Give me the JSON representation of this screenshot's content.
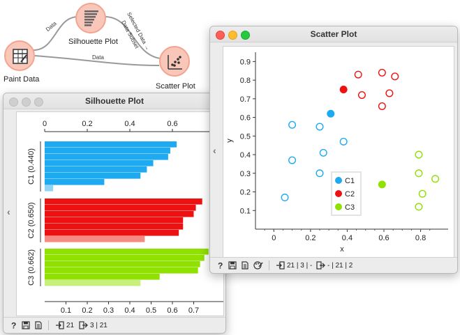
{
  "workflow": {
    "nodes": {
      "paint_data": "Paint Data",
      "silhouette_plot": "Silhouette Plot",
      "scatter_plot": "Scatter Plot"
    },
    "links": {
      "paint_to_silhouette": "Data",
      "paint_to_scatter": "Data",
      "silhouette_to_scatter_1": "Selected Data →",
      "silhouette_to_scatter_2": "Data Subset"
    },
    "colors": {
      "node_bg": "#f9c7b9",
      "node_ring": "#f2a48f",
      "link": "#999999"
    }
  },
  "silhouette_window": {
    "title": "Silhouette Plot",
    "status": {
      "input_count": "21",
      "output_count": "3 | 21"
    },
    "chart_data": {
      "type": "bar",
      "orientation": "horizontal",
      "x_ticks_top": [
        "0",
        "0.2",
        "0.4",
        "0.6"
      ],
      "x_ticks_bottom": [
        "0.1",
        "0.2",
        "0.3",
        "0.4",
        "0.5",
        "0.6",
        "0.7"
      ],
      "xlim": [
        0,
        0.77
      ],
      "groups": [
        {
          "label": "C1 (0.440)",
          "color": "#1eaaf0",
          "selected_color": "#8fd4f7",
          "values": [
            0.62,
            0.59,
            0.58,
            0.51,
            0.48,
            0.45,
            0.28,
            0.04
          ]
        },
        {
          "label": "C2 (0.650)",
          "color": "#ee1111",
          "selected_color": "#f58a80",
          "values": [
            0.74,
            0.71,
            0.7,
            0.65,
            0.65,
            0.63,
            0.47
          ]
        },
        {
          "label": "C3 (0.662)",
          "color": "#90e000",
          "selected_color": "#c7f07a",
          "values": [
            0.77,
            0.75,
            0.73,
            0.72,
            0.54,
            0.45
          ]
        }
      ]
    }
  },
  "scatter_window": {
    "title": "Scatter Plot",
    "status": {
      "input": "21 | 3 | -",
      "output": "- | 21 | 2"
    },
    "chart_data": {
      "type": "scatter",
      "xlabel": "x",
      "ylabel": "y",
      "xlim": [
        -0.1,
        0.95
      ],
      "ylim": [
        0,
        0.95
      ],
      "x_ticks": [
        "0",
        "0.2",
        "0.4",
        "0.6",
        "0.8"
      ],
      "y_ticks": [
        "0.1",
        "0.2",
        "0.3",
        "0.4",
        "0.5",
        "0.6",
        "0.7",
        "0.8",
        "0.9"
      ],
      "legend": [
        "C1",
        "C2",
        "C3"
      ],
      "legend_position": "center",
      "series": [
        {
          "name": "C1",
          "color": "#1eaaf0",
          "points": [
            [
              0.31,
              0.62,
              true
            ],
            [
              0.1,
              0.56,
              false
            ],
            [
              0.25,
              0.55,
              false
            ],
            [
              0.38,
              0.47,
              false
            ],
            [
              0.27,
              0.41,
              false
            ],
            [
              0.1,
              0.37,
              false
            ],
            [
              0.25,
              0.3,
              false
            ],
            [
              0.06,
              0.17,
              false
            ]
          ]
        },
        {
          "name": "C2",
          "color": "#ee1111",
          "points": [
            [
              0.38,
              0.75,
              true
            ],
            [
              0.46,
              0.83,
              false
            ],
            [
              0.59,
              0.84,
              false
            ],
            [
              0.66,
              0.82,
              false
            ],
            [
              0.48,
              0.72,
              false
            ],
            [
              0.63,
              0.73,
              false
            ],
            [
              0.59,
              0.66,
              false
            ]
          ]
        },
        {
          "name": "C3",
          "color": "#90e000",
          "points": [
            [
              0.59,
              0.24,
              true
            ],
            [
              0.79,
              0.4,
              false
            ],
            [
              0.79,
              0.3,
              false
            ],
            [
              0.88,
              0.27,
              false
            ],
            [
              0.81,
              0.19,
              false
            ],
            [
              0.79,
              0.12,
              false
            ]
          ]
        }
      ]
    }
  }
}
